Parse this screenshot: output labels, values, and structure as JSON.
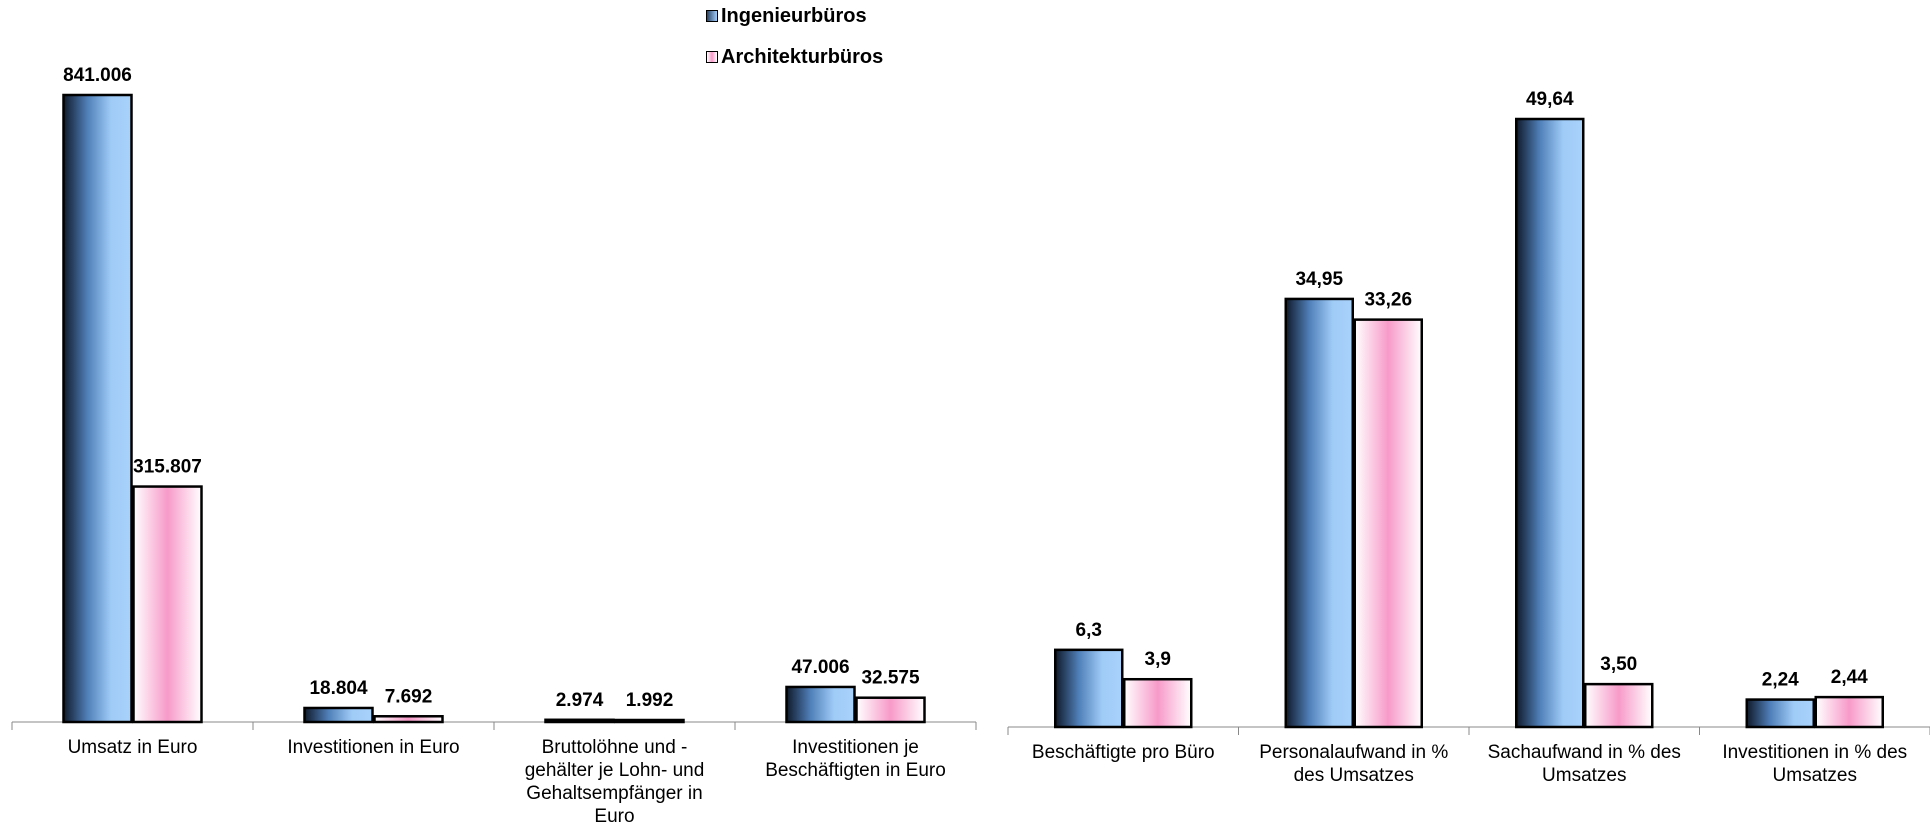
{
  "legend": [
    {
      "name": "Ingenieurbüros",
      "swatch_color": "#6fa8e8"
    },
    {
      "name": "Architekturbüros",
      "swatch_color": "#f2a6cc"
    }
  ],
  "chart_data": [
    {
      "type": "bar",
      "categories": [
        "Umsatz in Euro",
        "Investitionen in Euro",
        "Bruttolöhne und -gehälter je Lohn- und Gehaltsempfänger in Euro",
        "Investitionen je Beschäftigten in Euro"
      ],
      "category_lines": [
        [
          "Umsatz in Euro"
        ],
        [
          "Investitionen in Euro"
        ],
        [
          "Bruttolöhne und -",
          "gehälter je Lohn- und",
          "Gehaltsempfänger in",
          "Euro"
        ],
        [
          "Investitionen je",
          "Beschäftigten in Euro"
        ]
      ],
      "series": [
        {
          "name": "Ingenieurbüros",
          "values": [
            841006,
            18804,
            2974,
            47006
          ],
          "labels": [
            "841.006",
            "18.804",
            "2.974",
            "47.006"
          ]
        },
        {
          "name": "Architekturbüros",
          "values": [
            315807,
            7692,
            1992,
            32575
          ],
          "labels": [
            "315.807",
            "7.692",
            "1.992",
            "32.575"
          ]
        }
      ],
      "ylim": [
        0,
        841006
      ],
      "grid": false,
      "legend_position": "top-center"
    },
    {
      "type": "bar",
      "categories": [
        "Beschäftigte pro Büro",
        "Personalaufwand in % des Umsatzes",
        "Sachaufwand in % des Umsatzes",
        "Investitionen in % des Umsatzes"
      ],
      "category_lines": [
        [
          "Beschäftigte pro Büro"
        ],
        [
          "Personalaufwand in %",
          "des Umsatzes"
        ],
        [
          "Sachaufwand in % des",
          "Umsatzes"
        ],
        [
          "Investitionen in % des",
          "Umsatzes"
        ]
      ],
      "series": [
        {
          "name": "Ingenieurbüros",
          "values": [
            6.3,
            34.95,
            49.64,
            2.24
          ],
          "labels": [
            "6,3",
            "34,95",
            "49,64",
            "2,24"
          ]
        },
        {
          "name": "Architekturbüros",
          "values": [
            3.9,
            33.26,
            3.5,
            2.44
          ],
          "labels": [
            "3,9",
            "33,26",
            "3,50",
            "2,44"
          ]
        }
      ],
      "ylim": [
        0,
        49.64
      ],
      "grid": false,
      "legend_position": "top-center"
    }
  ]
}
